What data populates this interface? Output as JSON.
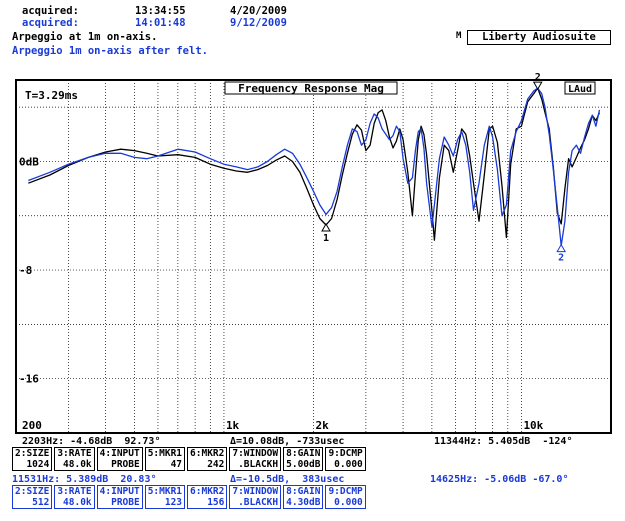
{
  "header": {
    "acq1_label": "acquired:",
    "acq1_time": "13:34:55",
    "acq1_date": "4/20/2009",
    "acq2_label": "acquired:",
    "acq2_time": "14:01:48",
    "acq2_date": "9/12/2009",
    "trace1_name": "Arpeggio at 1m on-axis.",
    "trace2_name": "Arpeggio 1m on-axis after felt.",
    "brand_mark": "M",
    "brand": "Liberty Audiosuite"
  },
  "colors": {
    "trace1": "#000000",
    "trace2": "#1a3ad8",
    "grid": "#000000"
  },
  "chart_data": {
    "type": "line",
    "title": "Frequency Response Mag",
    "tag": "LAud",
    "annotation": "T=3.29ms",
    "x_scale": "log",
    "xlim": [
      200,
      20000
    ],
    "ylim": [
      -20,
      6
    ],
    "grid": true,
    "x_tick_labels": [
      "200",
      "1k",
      "2k",
      "10k"
    ],
    "y_tick_labels": [
      {
        "value": 0,
        "label": "0dB"
      },
      {
        "value": -8,
        "label": "-8"
      },
      {
        "value": -16,
        "label": "-16"
      }
    ],
    "markers": [
      {
        "label": "1",
        "x": 2203,
        "y": -4.68
      },
      {
        "label": "2",
        "x": 11344,
        "y": 5.4
      }
    ],
    "series": [
      {
        "name": "Arpeggio at 1m on-axis.",
        "color": "#000000",
        "points": [
          [
            220,
            -1.6
          ],
          [
            260,
            -1.0
          ],
          [
            300,
            -0.3
          ],
          [
            350,
            0.3
          ],
          [
            400,
            0.7
          ],
          [
            450,
            0.9
          ],
          [
            500,
            0.8
          ],
          [
            550,
            0.6
          ],
          [
            600,
            0.4
          ],
          [
            700,
            0.5
          ],
          [
            800,
            0.3
          ],
          [
            900,
            -0.2
          ],
          [
            1000,
            -0.5
          ],
          [
            1100,
            -0.7
          ],
          [
            1200,
            -0.8
          ],
          [
            1300,
            -0.6
          ],
          [
            1400,
            -0.3
          ],
          [
            1500,
            0.1
          ],
          [
            1600,
            0.4
          ],
          [
            1700,
            0.0
          ],
          [
            1800,
            -0.8
          ],
          [
            1900,
            -2.0
          ],
          [
            2000,
            -3.2
          ],
          [
            2100,
            -4.2
          ],
          [
            2203,
            -4.68
          ],
          [
            2300,
            -4.2
          ],
          [
            2400,
            -2.8
          ],
          [
            2500,
            -1.0
          ],
          [
            2600,
            0.6
          ],
          [
            2700,
            2.0
          ],
          [
            2800,
            2.7
          ],
          [
            2900,
            2.3
          ],
          [
            3000,
            0.8
          ],
          [
            3100,
            1.2
          ],
          [
            3200,
            2.8
          ],
          [
            3300,
            3.6
          ],
          [
            3400,
            3.8
          ],
          [
            3500,
            3.0
          ],
          [
            3600,
            1.8
          ],
          [
            3700,
            1.0
          ],
          [
            3800,
            1.5
          ],
          [
            3900,
            2.4
          ],
          [
            4000,
            1.6
          ],
          [
            4150,
            -0.8
          ],
          [
            4300,
            -4.0
          ],
          [
            4400,
            -1.0
          ],
          [
            4500,
            1.6
          ],
          [
            4600,
            2.6
          ],
          [
            4700,
            2.0
          ],
          [
            4800,
            0.5
          ],
          [
            5000,
            -3.6
          ],
          [
            5100,
            -5.8
          ],
          [
            5300,
            -1.2
          ],
          [
            5500,
            1.2
          ],
          [
            5700,
            0.8
          ],
          [
            5900,
            -0.8
          ],
          [
            6100,
            0.8
          ],
          [
            6300,
            2.4
          ],
          [
            6500,
            2.0
          ],
          [
            6700,
            0.4
          ],
          [
            6900,
            -1.6
          ],
          [
            7200,
            -4.4
          ],
          [
            7500,
            -1.0
          ],
          [
            7800,
            2.4
          ],
          [
            8000,
            2.6
          ],
          [
            8300,
            1.4
          ],
          [
            8600,
            -1.8
          ],
          [
            8900,
            -5.6
          ],
          [
            9200,
            -0.2
          ],
          [
            9600,
            2.4
          ],
          [
            10000,
            2.6
          ],
          [
            10500,
            4.4
          ],
          [
            11000,
            5.0
          ],
          [
            11344,
            5.4
          ],
          [
            11700,
            4.6
          ],
          [
            12000,
            3.6
          ],
          [
            12400,
            2.4
          ],
          [
            12800,
            -0.4
          ],
          [
            13200,
            -3.8
          ],
          [
            13600,
            -4.6
          ],
          [
            14000,
            -2.0
          ],
          [
            14400,
            0.2
          ],
          [
            14800,
            -0.4
          ],
          [
            15300,
            0.3
          ],
          [
            15800,
            1.0
          ],
          [
            16300,
            1.6
          ],
          [
            16800,
            2.4
          ],
          [
            17300,
            3.4
          ],
          [
            17800,
            3.0
          ],
          [
            18300,
            3.6
          ]
        ]
      },
      {
        "name": "Arpeggio 1m on-axis after felt.",
        "color": "#1a3ad8",
        "points": [
          [
            220,
            -1.4
          ],
          [
            260,
            -0.8
          ],
          [
            300,
            -0.2
          ],
          [
            350,
            0.3
          ],
          [
            400,
            0.6
          ],
          [
            450,
            0.6
          ],
          [
            500,
            0.3
          ],
          [
            550,
            0.2
          ],
          [
            600,
            0.4
          ],
          [
            700,
            0.9
          ],
          [
            800,
            0.7
          ],
          [
            900,
            0.2
          ],
          [
            1000,
            -0.2
          ],
          [
            1100,
            -0.4
          ],
          [
            1200,
            -0.6
          ],
          [
            1300,
            -0.4
          ],
          [
            1400,
            0.0
          ],
          [
            1500,
            0.5
          ],
          [
            1600,
            0.9
          ],
          [
            1700,
            0.6
          ],
          [
            1800,
            -0.2
          ],
          [
            1900,
            -1.2
          ],
          [
            2000,
            -2.2
          ],
          [
            2100,
            -3.2
          ],
          [
            2203,
            -3.9
          ],
          [
            2300,
            -3.4
          ],
          [
            2400,
            -2.2
          ],
          [
            2500,
            -0.4
          ],
          [
            2600,
            1.2
          ],
          [
            2700,
            2.4
          ],
          [
            2800,
            2.2
          ],
          [
            2900,
            1.2
          ],
          [
            3000,
            1.6
          ],
          [
            3100,
            2.8
          ],
          [
            3200,
            3.5
          ],
          [
            3300,
            3.2
          ],
          [
            3400,
            2.4
          ],
          [
            3500,
            2.0
          ],
          [
            3600,
            1.6
          ],
          [
            3700,
            1.9
          ],
          [
            3800,
            2.6
          ],
          [
            3900,
            2.2
          ],
          [
            4000,
            0.2
          ],
          [
            4150,
            -1.6
          ],
          [
            4300,
            -1.2
          ],
          [
            4400,
            0.8
          ],
          [
            4500,
            2.2
          ],
          [
            4600,
            2.4
          ],
          [
            4700,
            1.0
          ],
          [
            4800,
            -1.6
          ],
          [
            5000,
            -4.8
          ],
          [
            5100,
            -3.2
          ],
          [
            5300,
            0.2
          ],
          [
            5500,
            1.8
          ],
          [
            5700,
            1.2
          ],
          [
            5900,
            0.4
          ],
          [
            6100,
            1.6
          ],
          [
            6300,
            2.2
          ],
          [
            6500,
            1.2
          ],
          [
            6700,
            -0.8
          ],
          [
            6900,
            -3.6
          ],
          [
            7200,
            -1.6
          ],
          [
            7500,
            1.2
          ],
          [
            7800,
            2.6
          ],
          [
            8000,
            1.8
          ],
          [
            8300,
            -0.6
          ],
          [
            8600,
            -4.0
          ],
          [
            8900,
            -3.2
          ],
          [
            9200,
            0.8
          ],
          [
            9600,
            2.2
          ],
          [
            10000,
            3.0
          ],
          [
            10500,
            4.6
          ],
          [
            11000,
            5.2
          ],
          [
            11344,
            5.4
          ],
          [
            11700,
            5.0
          ],
          [
            12000,
            4.0
          ],
          [
            12400,
            2.0
          ],
          [
            12800,
            -0.6
          ],
          [
            13200,
            -3.4
          ],
          [
            13600,
            -6.2
          ],
          [
            14000,
            -4.4
          ],
          [
            14400,
            -0.8
          ],
          [
            14800,
            0.8
          ],
          [
            15300,
            1.2
          ],
          [
            15800,
            0.6
          ],
          [
            16300,
            1.8
          ],
          [
            16800,
            2.8
          ],
          [
            17300,
            3.4
          ],
          [
            17800,
            2.6
          ],
          [
            18300,
            3.8
          ]
        ]
      }
    ]
  },
  "readouts": {
    "black": {
      "left": "2203Hz: -4.68dB  92.73°",
      "mid": "Δ=10.08dB, -733usec",
      "right": "11344Hz: 5.405dB  -124°"
    },
    "blue": {
      "left": "11531Hz: 5.389dB  20.83°",
      "mid": "Δ=-10.5dB,  383usec",
      "right": "14625Hz: -5.06dB -67.0°"
    }
  },
  "params_black": [
    {
      "key": "2:SIZE",
      "val": "1024"
    },
    {
      "key": "3:RATE",
      "val": "48.0k"
    },
    {
      "key": "4:INPUT",
      "val": "PROBE"
    },
    {
      "key": "5:MKR1",
      "val": "47"
    },
    {
      "key": "6:MKR2",
      "val": "242"
    },
    {
      "key": "7:WINDOW",
      "val": ".BLACKH"
    },
    {
      "key": "8:GAIN",
      "val": "5.00dB"
    },
    {
      "key": "9:DCMP",
      "val": "0.000"
    }
  ],
  "params_blue": [
    {
      "key": "2:SIZE",
      "val": "512"
    },
    {
      "key": "3:RATE",
      "val": "48.0k"
    },
    {
      "key": "4:INPUT",
      "val": "PROBE"
    },
    {
      "key": "5:MKR1",
      "val": "123"
    },
    {
      "key": "6:MKR2",
      "val": "156"
    },
    {
      "key": "7:WINDOW",
      "val": ".BLACKH"
    },
    {
      "key": "8:GAIN",
      "val": "4.30dB"
    },
    {
      "key": "9:DCMP",
      "val": "0.000"
    }
  ]
}
